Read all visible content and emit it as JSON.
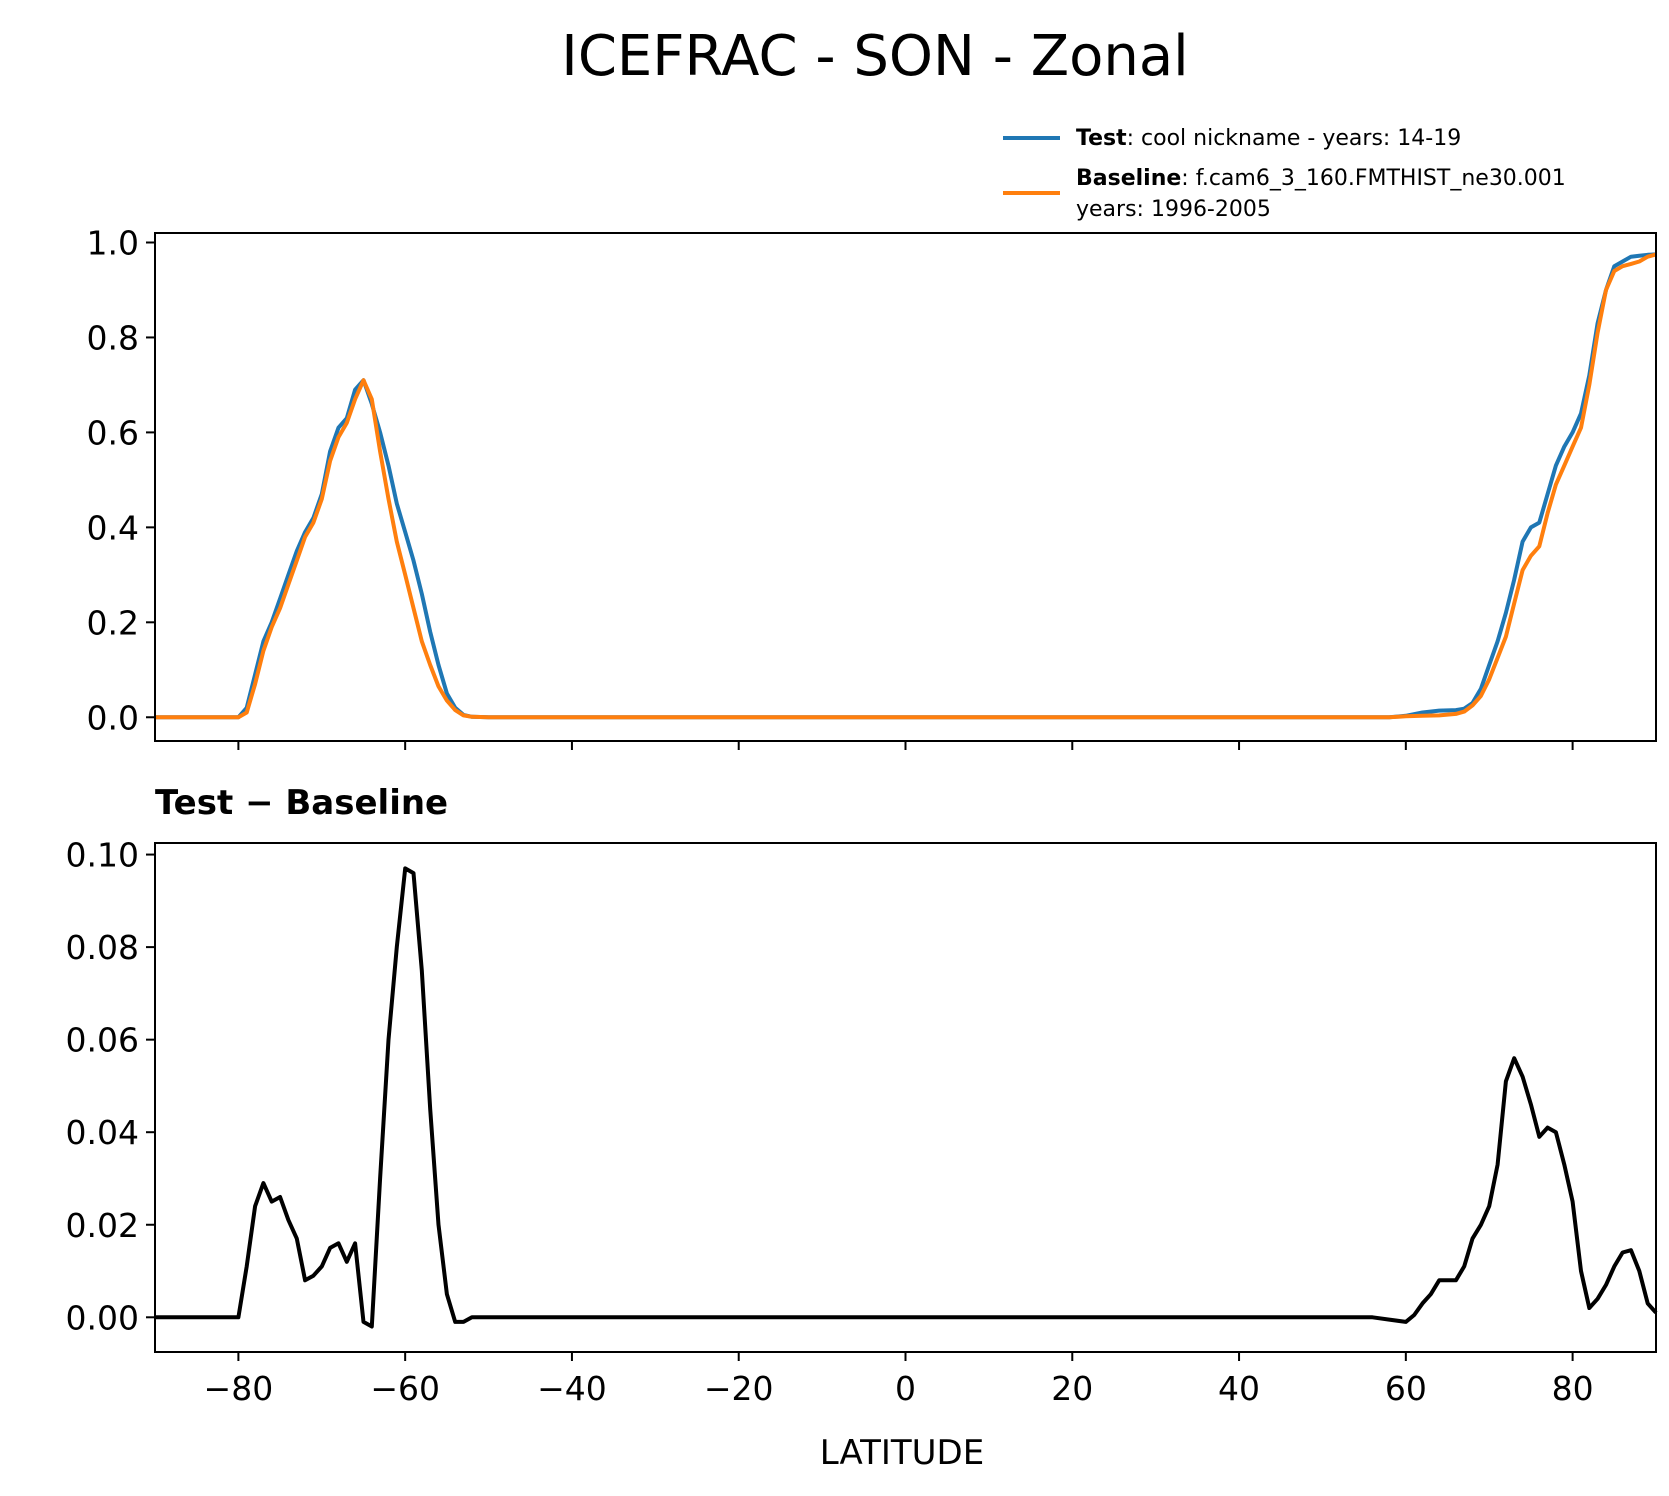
{
  "chart_data": [
    {
      "type": "line",
      "title": "ICEFRAC - SON - Zonal",
      "xlabel": "",
      "ylabel": "",
      "xlim": [
        -90,
        90
      ],
      "ylim": [
        -0.05,
        1.02
      ],
      "yticks": [
        0.0,
        0.2,
        0.4,
        0.6,
        0.8,
        1.0
      ],
      "ytick_labels": [
        "0.0",
        "0.2",
        "0.4",
        "0.6",
        "0.8",
        "1.0"
      ],
      "xticks": [
        -80,
        -60,
        -40,
        -20,
        0,
        20,
        40,
        60,
        80
      ],
      "legend": {
        "placement": "above-right",
        "entries": [
          {
            "bold": "Test",
            "text": ": cool nickname - years: 14-19",
            "text2": ""
          },
          {
            "bold": "Baseline",
            "text": ": f.cam6_3_160.FMTHIST_ne30.001",
            "text2": "years: 1996-2005"
          }
        ]
      },
      "series": [
        {
          "name": "Test",
          "color": "#1f77b4",
          "x": [
            -90,
            -80,
            -79,
            -78,
            -77,
            -76,
            -75,
            -74,
            -73,
            -72,
            -71,
            -70,
            -69,
            -68,
            -67,
            -66,
            -65,
            -64,
            -63,
            -62,
            -61,
            -60,
            -59,
            -58,
            -57,
            -56,
            -55,
            -54,
            -53,
            -52,
            -50,
            0,
            50,
            58,
            60,
            62,
            64,
            66,
            67,
            68,
            69,
            70,
            71,
            72,
            73,
            74,
            75,
            76,
            77,
            78,
            79,
            80,
            81,
            82,
            83,
            84,
            85,
            86,
            87,
            88,
            89,
            90
          ],
          "y": [
            0.0,
            0.0,
            0.02,
            0.09,
            0.16,
            0.2,
            0.25,
            0.3,
            0.35,
            0.39,
            0.42,
            0.47,
            0.56,
            0.61,
            0.63,
            0.69,
            0.71,
            0.66,
            0.6,
            0.53,
            0.45,
            0.39,
            0.33,
            0.26,
            0.18,
            0.11,
            0.05,
            0.02,
            0.005,
            0.001,
            0.0,
            0.0,
            0.0,
            0.0,
            0.003,
            0.01,
            0.014,
            0.015,
            0.018,
            0.03,
            0.06,
            0.11,
            0.16,
            0.22,
            0.29,
            0.37,
            0.4,
            0.41,
            0.47,
            0.53,
            0.57,
            0.6,
            0.64,
            0.72,
            0.83,
            0.9,
            0.95,
            0.96,
            0.97,
            0.972,
            0.974,
            0.975
          ]
        },
        {
          "name": "Baseline",
          "color": "#ff7f0e",
          "x": [
            -90,
            -80,
            -79,
            -78,
            -77,
            -76,
            -75,
            -74,
            -73,
            -72,
            -71,
            -70,
            -69,
            -68,
            -67,
            -66,
            -65,
            -64,
            -63,
            -62,
            -61,
            -60,
            -59,
            -58,
            -57,
            -56,
            -55,
            -54,
            -53,
            -52,
            -50,
            0,
            50,
            58,
            60,
            62,
            64,
            66,
            67,
            68,
            69,
            70,
            71,
            72,
            73,
            74,
            75,
            76,
            77,
            78,
            79,
            80,
            81,
            82,
            83,
            84,
            85,
            86,
            87,
            88,
            89,
            90
          ],
          "y": [
            0.0,
            0.0,
            0.01,
            0.07,
            0.14,
            0.19,
            0.23,
            0.28,
            0.33,
            0.38,
            0.41,
            0.46,
            0.54,
            0.59,
            0.62,
            0.67,
            0.71,
            0.67,
            0.56,
            0.46,
            0.37,
            0.3,
            0.23,
            0.16,
            0.11,
            0.065,
            0.035,
            0.015,
            0.004,
            0.001,
            0.0,
            0.0,
            0.0,
            0.0,
            0.002,
            0.003,
            0.004,
            0.007,
            0.012,
            0.025,
            0.045,
            0.08,
            0.125,
            0.17,
            0.24,
            0.31,
            0.34,
            0.36,
            0.43,
            0.49,
            0.53,
            0.57,
            0.61,
            0.7,
            0.81,
            0.9,
            0.94,
            0.95,
            0.955,
            0.96,
            0.97,
            0.975
          ]
        }
      ]
    },
    {
      "type": "line",
      "title": "Test − Baseline",
      "xlabel": "LATITUDE",
      "ylabel": "",
      "xlim": [
        -90,
        90
      ],
      "ylim": [
        -0.0075,
        0.1025
      ],
      "yticks": [
        0.0,
        0.02,
        0.04,
        0.06,
        0.08,
        0.1
      ],
      "ytick_labels": [
        "0.00",
        "0.02",
        "0.04",
        "0.06",
        "0.08",
        "0.10"
      ],
      "xticks": [
        -80,
        -60,
        -40,
        -20,
        0,
        20,
        40,
        60,
        80
      ],
      "xtick_labels": [
        "−80",
        "−60",
        "−40",
        "−20",
        "0",
        "20",
        "40",
        "60",
        "80"
      ],
      "series": [
        {
          "name": "",
          "color": "#000000",
          "x": [
            -90,
            -80,
            -79,
            -78,
            -77,
            -76,
            -75,
            -74,
            -73,
            -72,
            -71,
            -70,
            -69,
            -68,
            -67,
            -66,
            -65,
            -64,
            -63,
            -62,
            -61,
            -60,
            -59,
            -58,
            -57,
            -56,
            -55,
            -54,
            -53,
            -52,
            -50,
            0,
            53,
            56,
            58,
            60,
            61,
            62,
            63,
            64,
            65,
            66,
            67,
            68,
            69,
            70,
            71,
            72,
            73,
            74,
            75,
            76,
            77,
            78,
            79,
            80,
            81,
            82,
            83,
            84,
            85,
            86,
            87,
            88,
            89,
            90
          ],
          "y": [
            0.0,
            0.0,
            0.011,
            0.024,
            0.029,
            0.025,
            0.026,
            0.021,
            0.017,
            0.008,
            0.009,
            0.011,
            0.015,
            0.016,
            0.012,
            0.016,
            -0.001,
            -0.002,
            0.03,
            0.06,
            0.08,
            0.097,
            0.096,
            0.075,
            0.045,
            0.02,
            0.005,
            -0.001,
            -0.001,
            0.0,
            0.0,
            0.0,
            0.0,
            0.0,
            -0.0005,
            -0.001,
            0.0005,
            0.003,
            0.005,
            0.008,
            0.008,
            0.008,
            0.011,
            0.017,
            0.02,
            0.024,
            0.033,
            0.051,
            0.056,
            0.052,
            0.046,
            0.039,
            0.041,
            0.04,
            0.033,
            0.025,
            0.01,
            0.002,
            0.004,
            0.007,
            0.011,
            0.014,
            0.0145,
            0.01,
            0.003,
            0.001
          ]
        }
      ]
    }
  ]
}
